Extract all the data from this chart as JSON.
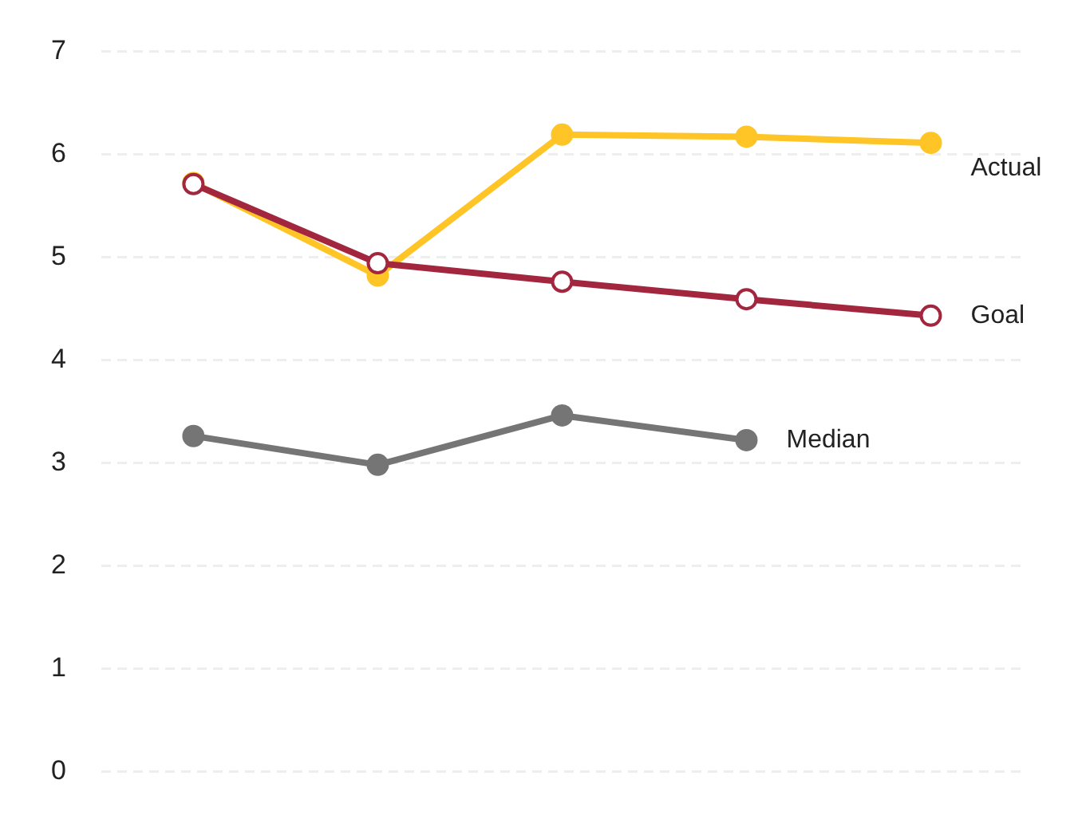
{
  "chart_data": {
    "type": "line",
    "categories": [
      null,
      null,
      null,
      null,
      null
    ],
    "series": [
      {
        "name": "Actual",
        "color": "#ffc425",
        "values": [
          5.72,
          4.82,
          6.19,
          6.17,
          6.11
        ]
      },
      {
        "name": "Goal",
        "color": "#a3263f",
        "values": [
          5.71,
          4.94,
          4.76,
          4.59,
          4.43
        ]
      },
      {
        "name": "Median",
        "color": "#757575",
        "values": [
          3.26,
          2.98,
          3.46,
          3.22,
          null
        ]
      }
    ],
    "ylim": [
      0,
      7
    ],
    "yticks": [
      0,
      1,
      2,
      3,
      4,
      5,
      6,
      7
    ],
    "grid": "y",
    "marker": "circle",
    "line_style": "solid",
    "legend": false
  }
}
